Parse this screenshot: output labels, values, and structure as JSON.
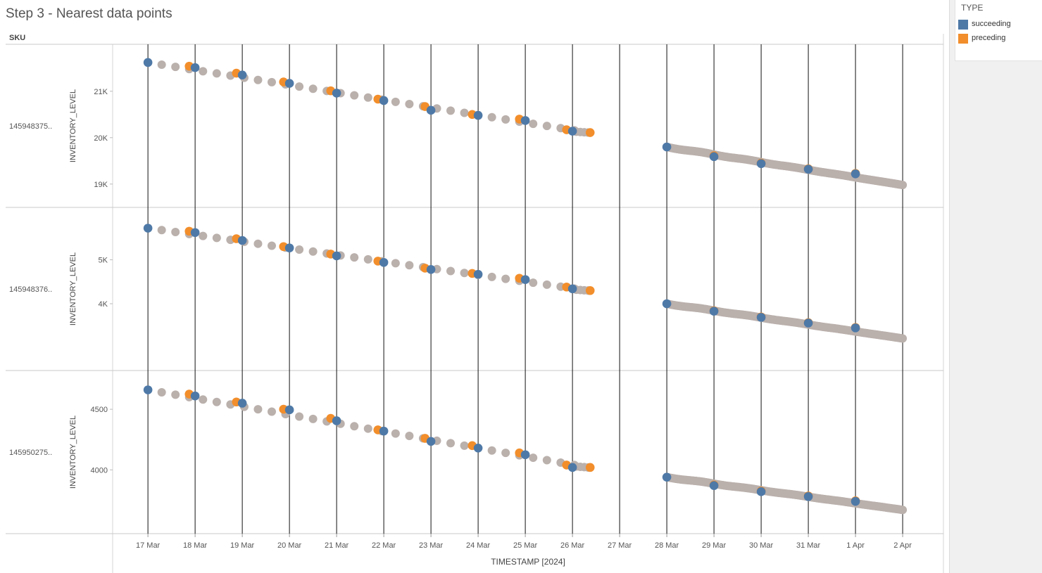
{
  "title": "Step 3 - Nearest data points",
  "legend": {
    "title": "TYPE",
    "items": [
      {
        "label": "succeeding",
        "color": "#4e79a7"
      },
      {
        "label": "preceding",
        "color": "#f28e2b"
      }
    ],
    "other_color": "#bab0ac"
  },
  "sku_header": "SKU",
  "chart_data": {
    "type": "scatter",
    "title": "Step 3 - Nearest data points",
    "xlabel": "TIMESTAMP [2024]",
    "x_ticks": [
      "17 Mar",
      "18 Mar",
      "19 Mar",
      "20 Mar",
      "21 Mar",
      "22 Mar",
      "23 Mar",
      "24 Mar",
      "25 Mar",
      "26 Mar",
      "27 Mar",
      "28 Mar",
      "29 Mar",
      "30 Mar",
      "31 Mar",
      "1 Apr",
      "2 Apr"
    ],
    "x_range": [
      "2024-03-16T15:00",
      "2024-04-02T10:00"
    ],
    "vertical_lines": [
      "2024-03-17",
      "2024-03-18",
      "2024-03-19",
      "2024-03-20",
      "2024-03-21",
      "2024-03-22",
      "2024-03-23",
      "2024-03-24",
      "2024-03-25",
      "2024-03-26",
      "2024-03-27",
      "2024-03-28",
      "2024-03-29",
      "2024-03-30",
      "2024-03-31",
      "2024-04-01",
      "2024-04-02"
    ],
    "panels": [
      {
        "sku": "145948375..",
        "ylabel": "INVENTORY_LEVEL",
        "yticks": [
          {
            "v": 21000,
            "label": "21K"
          },
          {
            "v": 20000,
            "label": "20K"
          },
          {
            "v": 19000,
            "label": "19K"
          }
        ],
        "ylim": [
          18800,
          21830
        ],
        "first_start": 21620,
        "first_end": 20110,
        "second_start": 19800,
        "second_end": 18980,
        "series": [
          {
            "name": "succeeding",
            "points": [
              [
                "2024-03-17T00:00",
                21620
              ],
              [
                "2024-03-18T00:00",
                21510
              ],
              [
                "2024-03-19T00:00",
                21350
              ],
              [
                "2024-03-20T00:00",
                21170
              ],
              [
                "2024-03-21T00:00",
                20960
              ],
              [
                "2024-03-22T00:00",
                20800
              ],
              [
                "2024-03-23T00:00",
                20590
              ],
              [
                "2024-03-24T00:00",
                20480
              ],
              [
                "2024-03-25T00:00",
                20370
              ],
              [
                "2024-03-26T00:00",
                20140
              ],
              [
                "2024-03-28T00:00",
                19800
              ],
              [
                "2024-03-29T00:00",
                19590
              ],
              [
                "2024-03-30T00:00",
                19440
              ],
              [
                "2024-03-31T00:00",
                19320
              ],
              [
                "2024-04-01T00:00",
                19220
              ]
            ]
          },
          {
            "name": "preceding",
            "points": [
              [
                "2024-03-17T21:00",
                21540
              ],
              [
                "2024-03-18T21:00",
                21390
              ],
              [
                "2024-03-19T21:00",
                21200
              ],
              [
                "2024-03-20T21:00",
                21010
              ],
              [
                "2024-03-21T21:00",
                20830
              ],
              [
                "2024-03-22T21:00",
                20670
              ],
              [
                "2024-03-23T21:00",
                20500
              ],
              [
                "2024-03-24T21:00",
                20400
              ],
              [
                "2024-03-25T21:00",
                20170
              ],
              [
                "2024-03-26T09:00",
                20110
              ],
              [
                "2024-03-29T00:00",
                19610
              ],
              [
                "2024-03-30T00:00",
                19450
              ],
              [
                "2024-03-31T00:00",
                19330
              ],
              [
                "2024-04-01T00:00",
                19230
              ]
            ]
          }
        ]
      },
      {
        "sku": "145948376..",
        "ylabel": "INVENTORY_LEVEL",
        "yticks": [
          {
            "v": 5000,
            "label": "5K"
          },
          {
            "v": 4000,
            "label": "4K"
          }
        ],
        "ylim": [
          2800,
          6000
        ],
        "first_start": 5720,
        "first_end": 4300,
        "second_start": 4000,
        "second_end": 3210,
        "series": [
          {
            "name": "succeeding",
            "points": [
              [
                "2024-03-17T00:00",
                5720
              ],
              [
                "2024-03-18T00:00",
                5620
              ],
              [
                "2024-03-19T00:00",
                5440
              ],
              [
                "2024-03-20T00:00",
                5270
              ],
              [
                "2024-03-21T00:00",
                5090
              ],
              [
                "2024-03-22T00:00",
                4940
              ],
              [
                "2024-03-23T00:00",
                4780
              ],
              [
                "2024-03-24T00:00",
                4670
              ],
              [
                "2024-03-25T00:00",
                4550
              ],
              [
                "2024-03-26T00:00",
                4340
              ],
              [
                "2024-03-28T00:00",
                4000
              ],
              [
                "2024-03-29T00:00",
                3830
              ],
              [
                "2024-03-30T00:00",
                3690
              ],
              [
                "2024-03-31T00:00",
                3560
              ],
              [
                "2024-04-01T00:00",
                3450
              ]
            ]
          },
          {
            "name": "preceding",
            "points": [
              [
                "2024-03-17T21:00",
                5650
              ],
              [
                "2024-03-18T21:00",
                5480
              ],
              [
                "2024-03-19T21:00",
                5300
              ],
              [
                "2024-03-20T21:00",
                5130
              ],
              [
                "2024-03-21T21:00",
                4970
              ],
              [
                "2024-03-22T21:00",
                4810
              ],
              [
                "2024-03-23T21:00",
                4690
              ],
              [
                "2024-03-24T21:00",
                4580
              ],
              [
                "2024-03-25T21:00",
                4380
              ],
              [
                "2024-03-26T09:00",
                4300
              ],
              [
                "2024-03-29T00:00",
                3840
              ],
              [
                "2024-03-30T00:00",
                3700
              ],
              [
                "2024-03-31T00:00",
                3570
              ],
              [
                "2024-04-01T00:00",
                3460
              ]
            ]
          }
        ]
      },
      {
        "sku": "145950275..",
        "ylabel": "INVENTORY_LEVEL",
        "yticks": [
          {
            "v": 4500,
            "label": "4500"
          },
          {
            "v": 4000,
            "label": "4000"
          }
        ],
        "ylim": [
          3590,
          4750
        ],
        "first_start": 4660,
        "first_end": 4020,
        "second_start": 3940,
        "second_end": 3670,
        "series": [
          {
            "name": "succeeding",
            "points": [
              [
                "2024-03-17T00:00",
                4660
              ],
              [
                "2024-03-18T00:00",
                4610
              ],
              [
                "2024-03-19T00:00",
                4550
              ],
              [
                "2024-03-20T00:00",
                4495
              ],
              [
                "2024-03-21T00:00",
                4405
              ],
              [
                "2024-03-22T00:00",
                4320
              ],
              [
                "2024-03-23T00:00",
                4235
              ],
              [
                "2024-03-24T00:00",
                4180
              ],
              [
                "2024-03-25T00:00",
                4125
              ],
              [
                "2024-03-26T00:00",
                4020
              ],
              [
                "2024-03-28T00:00",
                3940
              ],
              [
                "2024-03-29T00:00",
                3870
              ],
              [
                "2024-03-30T00:00",
                3820
              ],
              [
                "2024-03-31T00:00",
                3780
              ],
              [
                "2024-04-01T00:00",
                3740
              ]
            ]
          },
          {
            "name": "preceding",
            "points": [
              [
                "2024-03-17T21:00",
                4625
              ],
              [
                "2024-03-18T21:00",
                4560
              ],
              [
                "2024-03-19T21:00",
                4500
              ],
              [
                "2024-03-20T21:00",
                4425
              ],
              [
                "2024-03-21T21:00",
                4330
              ],
              [
                "2024-03-22T21:00",
                4260
              ],
              [
                "2024-03-23T21:00",
                4200
              ],
              [
                "2024-03-24T21:00",
                4140
              ],
              [
                "2024-03-25T21:00",
                4040
              ],
              [
                "2024-03-26T09:00",
                4020
              ],
              [
                "2024-03-29T00:00",
                3875
              ],
              [
                "2024-03-30T00:00",
                3825
              ],
              [
                "2024-03-31T00:00",
                3785
              ],
              [
                "2024-04-01T00:00",
                3745
              ]
            ]
          }
        ]
      }
    ]
  }
}
